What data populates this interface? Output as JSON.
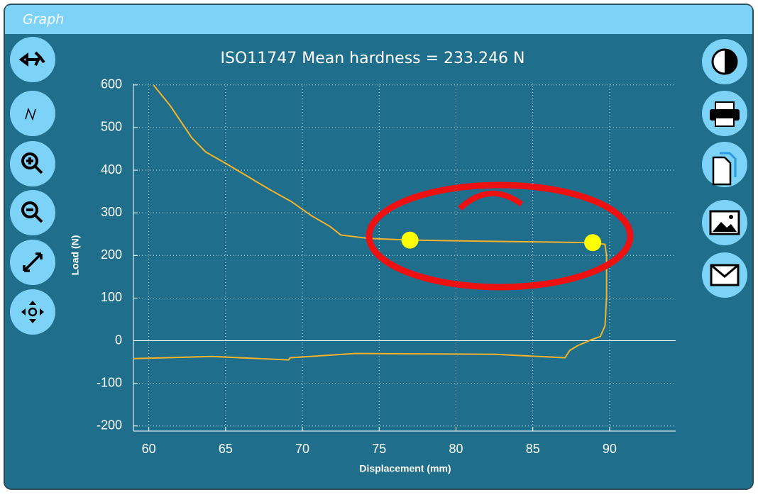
{
  "window": {
    "title": "Graph"
  },
  "chart_data": {
    "type": "line",
    "title": "ISO11747 Mean hardness = 233.246 N",
    "x_label": "Displacement (mm)",
    "y_label": "Load (N)",
    "x": [
      60.3,
      61.4,
      62.8,
      63.7,
      65.1,
      66.5,
      67.9,
      69.3,
      70.6,
      71.8,
      72.5,
      74.3,
      77.0,
      82.6,
      88.9,
      89.7,
      89.8,
      89.8,
      89.7,
      89.4,
      88.8,
      87.9,
      87.4,
      87.1,
      82.6,
      73.4,
      69.2,
      69.1,
      64.1,
      59.0
    ],
    "values": [
      600,
      551,
      476,
      443,
      414,
      384,
      354,
      326,
      293,
      268,
      248,
      240,
      236,
      233,
      230,
      226,
      201,
      101,
      35,
      10,
      2,
      -12,
      -23,
      -40,
      -32,
      -30,
      -40,
      -45,
      -37,
      -42
    ],
    "color": "#f5b32a",
    "markers": {
      "x": [
        77.0,
        88.9
      ],
      "values": [
        236,
        230
      ],
      "color": "#ffff00"
    },
    "xlim": [
      59,
      94.3
    ],
    "ylim": [
      -212,
      603
    ],
    "xticks": [
      60,
      65,
      70,
      75,
      80,
      85,
      90
    ],
    "yticks": [
      -200,
      -100,
      0,
      100,
      200,
      300,
      400,
      500,
      600
    ],
    "grid": true
  }
}
